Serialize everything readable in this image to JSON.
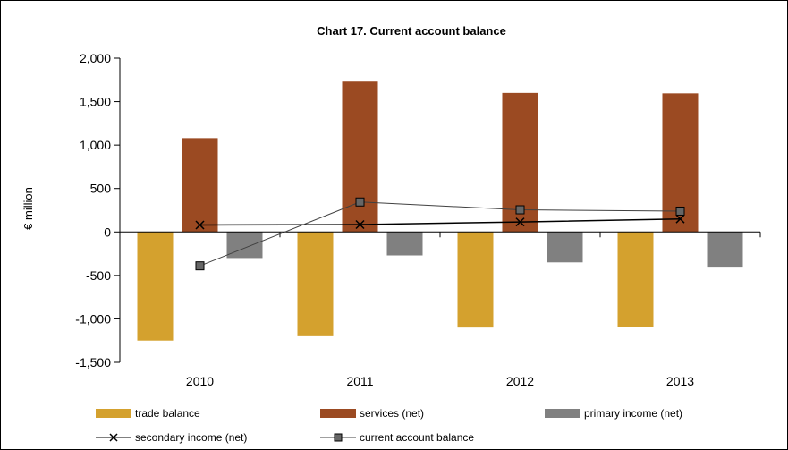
{
  "chart_data": {
    "type": "bar",
    "title": "Chart 17.  Current account balance",
    "ylabel": "€ million",
    "xlabel": "",
    "categories": [
      "2010",
      "2011",
      "2012",
      "2013"
    ],
    "ylim": [
      -1500,
      2000
    ],
    "yticks": [
      -1500,
      -1000,
      -500,
      0,
      500,
      1000,
      1500,
      2000
    ],
    "ytick_labels": [
      "-1,500",
      "-1,000",
      "-500",
      "0",
      "500",
      "1,000",
      "1,500",
      "2,000"
    ],
    "grid": false,
    "legend_position": "bottom",
    "series": [
      {
        "name": "trade balance",
        "kind": "bar",
        "color": "#D4A12E",
        "values": [
          -1250,
          -1200,
          -1100,
          -1090
        ]
      },
      {
        "name": "services (net)",
        "kind": "bar",
        "color": "#9B4A22",
        "values": [
          1080,
          1730,
          1600,
          1595
        ]
      },
      {
        "name": "primary income (net)",
        "kind": "bar",
        "color": "#808080",
        "values": [
          -300,
          -270,
          -350,
          -410
        ]
      },
      {
        "name": "secondary income (net)",
        "kind": "line",
        "marker": "x",
        "color": "#000000",
        "values": [
          80,
          85,
          115,
          150
        ]
      },
      {
        "name": "current account balance",
        "kind": "line",
        "marker": "square",
        "color": "#404040",
        "values": [
          -390,
          345,
          255,
          240
        ]
      }
    ]
  }
}
